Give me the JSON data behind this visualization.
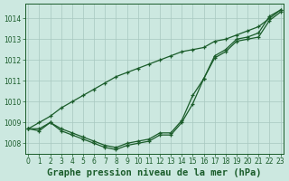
{
  "title": "Graphe pression niveau de la mer (hPa)",
  "background_color": "#cce8e0",
  "grid_color": "#a8c8c0",
  "line_color": "#1a5c2a",
  "x_hours": [
    0,
    1,
    2,
    3,
    4,
    5,
    6,
    7,
    8,
    9,
    10,
    11,
    12,
    13,
    14,
    15,
    16,
    17,
    18,
    19,
    20,
    21,
    22,
    23
  ],
  "line_high": [
    1008.7,
    1009.0,
    1009.3,
    1009.7,
    1010.0,
    1010.3,
    1010.6,
    1010.9,
    1011.2,
    1011.4,
    1011.6,
    1011.8,
    1012.0,
    1012.2,
    1012.4,
    1012.5,
    1012.6,
    1012.9,
    1013.0,
    1013.2,
    1013.4,
    1013.6,
    1014.0,
    1014.4
  ],
  "line_low": [
    1008.7,
    1008.6,
    1009.0,
    1008.6,
    1008.4,
    1008.2,
    1008.0,
    1007.8,
    1007.7,
    1007.9,
    1008.0,
    1008.1,
    1008.4,
    1008.4,
    1009.0,
    1009.9,
    1011.1,
    1012.1,
    1012.4,
    1012.9,
    1013.0,
    1013.1,
    1013.9,
    1014.3
  ],
  "line_mid": [
    1008.7,
    1008.7,
    1009.0,
    1008.7,
    1008.5,
    1008.3,
    1008.1,
    1007.9,
    1007.8,
    1008.0,
    1008.1,
    1008.2,
    1008.5,
    1008.5,
    1009.1,
    1010.3,
    1011.1,
    1012.2,
    1012.5,
    1013.0,
    1013.1,
    1013.3,
    1014.1,
    1014.4
  ],
  "ylim": [
    1007.5,
    1014.7
  ],
  "yticks": [
    1008,
    1009,
    1010,
    1011,
    1012,
    1013,
    1014
  ],
  "xlim": [
    -0.3,
    23.3
  ],
  "title_fontsize": 7.5,
  "tick_fontsize": 5.5,
  "figsize": [
    3.2,
    2.0
  ],
  "dpi": 100
}
